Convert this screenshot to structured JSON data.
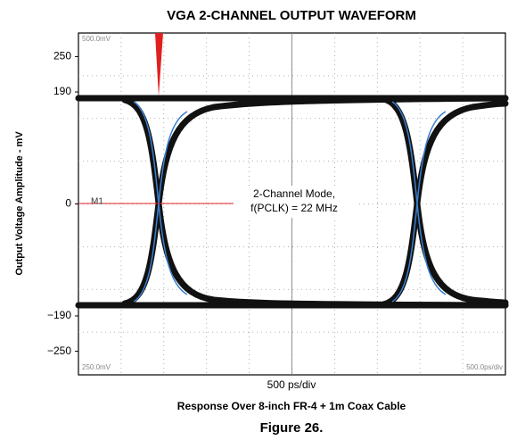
{
  "chart_data": {
    "type": "eye",
    "title": "VGA 2-CHANNEL OUTPUT WAVEFORM",
    "y_label": "Output Voltage Amplitude - mV",
    "x_label": "500 ps/div",
    "caption": "Response Over 8-inch FR-4 + 1m Coax Cable",
    "figure": "Figure 26.",
    "annotation": [
      "2-Channel Mode,",
      "f(PCLK) = 22 MHz"
    ],
    "marker": "M1",
    "scope_labels": [
      "500.0mV",
      "250.0mV",
      "500.0ps/div"
    ],
    "ylim": [
      -290,
      290
    ],
    "yticks": [
      250,
      190,
      0,
      {
        "value": -190,
        "label": "−190"
      },
      {
        "value": -250,
        "label": "−250"
      }
    ],
    "trace_color": "#111111",
    "marker_color": "#e02020"
  }
}
